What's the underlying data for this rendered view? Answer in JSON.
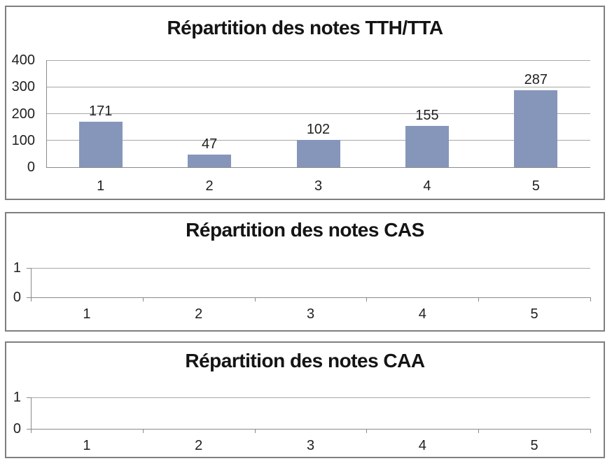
{
  "colors": {
    "bar": "#8696BA",
    "grid": "#A8A8A8",
    "axis": "#8A8A8A",
    "border": "#7F7F7F",
    "text": "#1F1F1F",
    "title": "#141414"
  },
  "chart_data": [
    {
      "type": "bar",
      "title": "Répartition des notes TTH/TTA",
      "categories": [
        "1",
        "2",
        "3",
        "4",
        "5"
      ],
      "values": [
        171,
        47,
        102,
        155,
        287
      ],
      "data_labels": [
        "171",
        "47",
        "102",
        "155",
        "287"
      ],
      "show_data_labels": true,
      "ylim": [
        0,
        400
      ],
      "yticks": [
        0,
        100,
        200,
        300,
        400
      ],
      "ytick_labels": [
        "0",
        "100",
        "200",
        "300",
        "400"
      ],
      "grid": true,
      "legend": "none"
    },
    {
      "type": "bar",
      "title": "Répartition des notes CAS",
      "categories": [
        "1",
        "2",
        "3",
        "4",
        "5"
      ],
      "values": [],
      "data_labels": [],
      "show_data_labels": false,
      "ylim": [
        0,
        1
      ],
      "yticks": [
        0,
        1
      ],
      "ytick_labels": [
        "0",
        "1"
      ],
      "grid": true,
      "legend": "none"
    },
    {
      "type": "bar",
      "title": "Répartition des notes CAA",
      "categories": [
        "1",
        "2",
        "3",
        "4",
        "5"
      ],
      "values": [],
      "data_labels": [],
      "show_data_labels": false,
      "ylim": [
        0,
        1
      ],
      "yticks": [
        0,
        1
      ],
      "ytick_labels": [
        "0",
        "1"
      ],
      "grid": true,
      "legend": "none"
    }
  ]
}
